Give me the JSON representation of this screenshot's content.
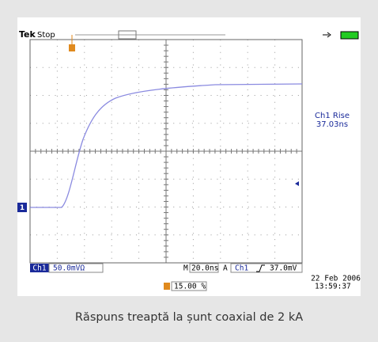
{
  "screen": {
    "brand": "Tek",
    "status": "Stop",
    "channel_marker": "1",
    "measurement": {
      "label": "Ch1 Rise",
      "value": "37.03ns"
    },
    "footer": {
      "channel": "Ch1",
      "scale": "50.0mVΩ",
      "timebase_label": "M",
      "timebase": "20.0ns",
      "trigger_mode": "A",
      "trigger_channel": "Ch1",
      "trigger_level": "37.0mV",
      "date": "22 Feb 2006",
      "time": "13:59:37",
      "trigger_position": "15.00 %"
    }
  },
  "caption": "Răspuns treaptă la șunt coaxial de 2 kA"
}
